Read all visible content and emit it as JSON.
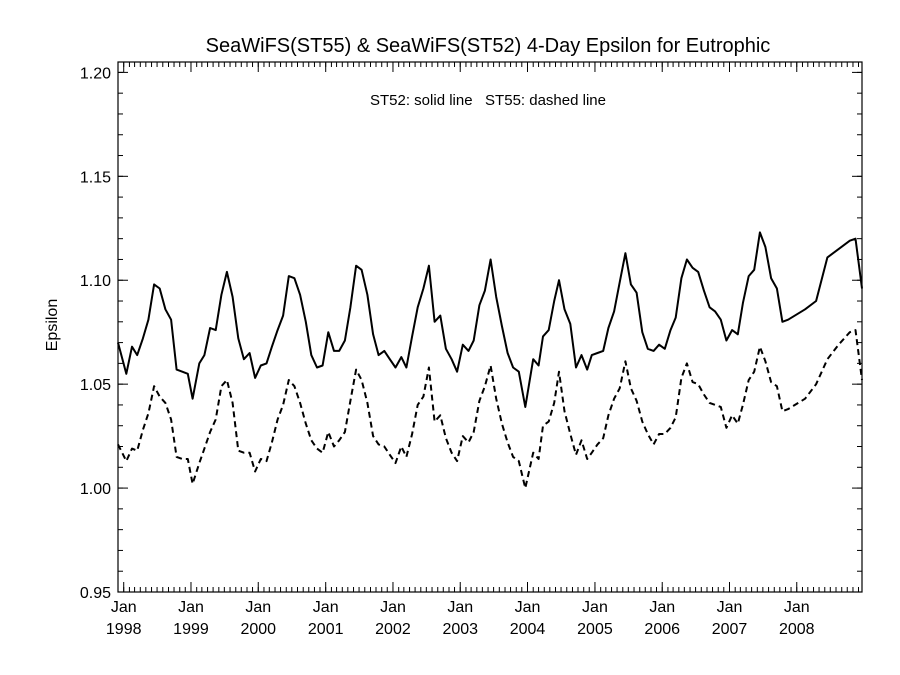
{
  "chart_data": {
    "type": "line",
    "title": "SeaWiFS(ST55) & SeaWiFS(ST52) 4-Day Epsilon for Eutrophic",
    "annotation": "ST52: solid line   ST55: dashed line",
    "ylabel": "Epsilon",
    "xlabel": "",
    "ylim": [
      0.95,
      1.205
    ],
    "xlim": [
      "1997-12-01",
      "2008-12-20"
    ],
    "y_ticks": [
      "0.95",
      "1.00",
      "1.05",
      "1.10",
      "1.15",
      "1.20"
    ],
    "x_ticks": [
      {
        "date": "1998-01-01",
        "month": "Jan",
        "year": "1998"
      },
      {
        "date": "1999-01-01",
        "month": "Jan",
        "year": "1999"
      },
      {
        "date": "2000-01-01",
        "month": "Jan",
        "year": "2000"
      },
      {
        "date": "2001-01-01",
        "month": "Jan",
        "year": "2001"
      },
      {
        "date": "2002-01-01",
        "month": "Jan",
        "year": "2002"
      },
      {
        "date": "2003-01-01",
        "month": "Jan",
        "year": "2003"
      },
      {
        "date": "2004-01-01",
        "month": "Jan",
        "year": "2004"
      },
      {
        "date": "2005-01-01",
        "month": "Jan",
        "year": "2005"
      },
      {
        "date": "2006-01-01",
        "month": "Jan",
        "year": "2006"
      },
      {
        "date": "2007-01-01",
        "month": "Jan",
        "year": "2007"
      },
      {
        "date": "2008-01-01",
        "month": "Jan",
        "year": "2008"
      }
    ],
    "series": [
      {
        "name": "ST52",
        "style": "solid",
        "points": [
          [
            "1997-12-01",
            1.07
          ],
          [
            "1998-01-15",
            1.055
          ],
          [
            "1998-02-15",
            1.068
          ],
          [
            "1998-03-15",
            1.064
          ],
          [
            "1998-04-15",
            1.072
          ],
          [
            "1998-05-15",
            1.081
          ],
          [
            "1998-06-15",
            1.098
          ],
          [
            "1998-07-15",
            1.096
          ],
          [
            "1998-08-15",
            1.086
          ],
          [
            "1998-09-15",
            1.081
          ],
          [
            "1998-10-15",
            1.057
          ],
          [
            "1998-11-15",
            1.056
          ],
          [
            "1998-12-15",
            1.055
          ],
          [
            "1999-01-10",
            1.043
          ],
          [
            "1999-02-15",
            1.06
          ],
          [
            "1999-03-15",
            1.064
          ],
          [
            "1999-04-15",
            1.077
          ],
          [
            "1999-05-15",
            1.076
          ],
          [
            "1999-06-15",
            1.093
          ],
          [
            "1999-07-15",
            1.104
          ],
          [
            "1999-08-15",
            1.092
          ],
          [
            "1999-09-15",
            1.072
          ],
          [
            "1999-10-15",
            1.062
          ],
          [
            "1999-11-15",
            1.065
          ],
          [
            "1999-12-15",
            1.053
          ],
          [
            "2000-01-15",
            1.059
          ],
          [
            "2000-02-15",
            1.06
          ],
          [
            "2000-03-15",
            1.068
          ],
          [
            "2000-04-15",
            1.076
          ],
          [
            "2000-05-15",
            1.083
          ],
          [
            "2000-06-15",
            1.102
          ],
          [
            "2000-07-15",
            1.101
          ],
          [
            "2000-08-15",
            1.093
          ],
          [
            "2000-09-15",
            1.08
          ],
          [
            "2000-10-15",
            1.064
          ],
          [
            "2000-11-15",
            1.058
          ],
          [
            "2000-12-15",
            1.059
          ],
          [
            "2001-01-15",
            1.075
          ],
          [
            "2001-02-15",
            1.066
          ],
          [
            "2001-03-15",
            1.066
          ],
          [
            "2001-04-15",
            1.071
          ],
          [
            "2001-05-15",
            1.087
          ],
          [
            "2001-06-15",
            1.107
          ],
          [
            "2001-07-15",
            1.105
          ],
          [
            "2001-08-15",
            1.093
          ],
          [
            "2001-09-15",
            1.074
          ],
          [
            "2001-10-15",
            1.064
          ],
          [
            "2001-11-15",
            1.066
          ],
          [
            "2001-12-15",
            1.062
          ],
          [
            "2002-01-15",
            1.058
          ],
          [
            "2002-02-15",
            1.063
          ],
          [
            "2002-03-15",
            1.058
          ],
          [
            "2002-04-15",
            1.073
          ],
          [
            "2002-05-15",
            1.087
          ],
          [
            "2002-06-15",
            1.096
          ],
          [
            "2002-07-15",
            1.107
          ],
          [
            "2002-08-15",
            1.08
          ],
          [
            "2002-09-15",
            1.083
          ],
          [
            "2002-10-15",
            1.067
          ],
          [
            "2002-11-15",
            1.062
          ],
          [
            "2002-12-15",
            1.056
          ],
          [
            "2003-01-15",
            1.069
          ],
          [
            "2003-02-15",
            1.066
          ],
          [
            "2003-03-15",
            1.071
          ],
          [
            "2003-04-15",
            1.088
          ],
          [
            "2003-05-15",
            1.095
          ],
          [
            "2003-06-15",
            1.11
          ],
          [
            "2003-07-15",
            1.092
          ],
          [
            "2003-08-15",
            1.078
          ],
          [
            "2003-09-15",
            1.065
          ],
          [
            "2003-10-15",
            1.058
          ],
          [
            "2003-11-15",
            1.056
          ],
          [
            "2003-12-20",
            1.039
          ],
          [
            "2004-02-01",
            1.062
          ],
          [
            "2004-03-01",
            1.059
          ],
          [
            "2004-03-25",
            1.073
          ],
          [
            "2004-04-25",
            1.076
          ],
          [
            "2004-05-25",
            1.09
          ],
          [
            "2004-06-20",
            1.1
          ],
          [
            "2004-07-20",
            1.086
          ],
          [
            "2004-08-20",
            1.079
          ],
          [
            "2004-09-20",
            1.058
          ],
          [
            "2004-10-20",
            1.064
          ],
          [
            "2004-11-20",
            1.057
          ],
          [
            "2004-12-15",
            1.064
          ],
          [
            "2005-01-15",
            1.065
          ],
          [
            "2005-02-15",
            1.066
          ],
          [
            "2005-03-15",
            1.077
          ],
          [
            "2005-04-15",
            1.085
          ],
          [
            "2005-05-15",
            1.099
          ],
          [
            "2005-06-15",
            1.113
          ],
          [
            "2005-07-15",
            1.098
          ],
          [
            "2005-08-15",
            1.094
          ],
          [
            "2005-09-15",
            1.075
          ],
          [
            "2005-10-15",
            1.067
          ],
          [
            "2005-11-15",
            1.066
          ],
          [
            "2005-12-15",
            1.069
          ],
          [
            "2006-01-15",
            1.067
          ],
          [
            "2006-02-15",
            1.076
          ],
          [
            "2006-03-15",
            1.082
          ],
          [
            "2006-04-15",
            1.101
          ],
          [
            "2006-05-15",
            1.11
          ],
          [
            "2006-06-15",
            1.106
          ],
          [
            "2006-07-15",
            1.104
          ],
          [
            "2006-08-15",
            1.095
          ],
          [
            "2006-09-15",
            1.087
          ],
          [
            "2006-10-15",
            1.085
          ],
          [
            "2006-11-15",
            1.081
          ],
          [
            "2006-12-15",
            1.071
          ],
          [
            "2007-01-15",
            1.076
          ],
          [
            "2007-02-15",
            1.074
          ],
          [
            "2007-03-15",
            1.089
          ],
          [
            "2007-04-15",
            1.102
          ],
          [
            "2007-05-15",
            1.105
          ],
          [
            "2007-06-15",
            1.123
          ],
          [
            "2007-07-15",
            1.116
          ],
          [
            "2007-08-15",
            1.101
          ],
          [
            "2007-09-15",
            1.096
          ],
          [
            "2007-10-15",
            1.08
          ],
          [
            "2007-11-15",
            1.081
          ],
          [
            "2008-02-15",
            1.086
          ],
          [
            "2008-04-15",
            1.09
          ],
          [
            "2008-06-15",
            1.111
          ],
          [
            "2008-08-15",
            1.115
          ],
          [
            "2008-10-15",
            1.119
          ],
          [
            "2008-11-15",
            1.12
          ],
          [
            "2008-12-20",
            1.096
          ]
        ]
      },
      {
        "name": "ST55",
        "style": "dashed",
        "points": [
          [
            "1997-12-01",
            1.021
          ],
          [
            "1998-01-15",
            1.013
          ],
          [
            "1998-02-15",
            1.019
          ],
          [
            "1998-03-15",
            1.018
          ],
          [
            "1998-04-15",
            1.028
          ],
          [
            "1998-05-15",
            1.036
          ],
          [
            "1998-06-15",
            1.049
          ],
          [
            "1998-07-15",
            1.044
          ],
          [
            "1998-08-15",
            1.041
          ],
          [
            "1998-09-15",
            1.033
          ],
          [
            "1998-10-15",
            1.015
          ],
          [
            "1998-11-15",
            1.014
          ],
          [
            "1998-12-15",
            1.014
          ],
          [
            "1999-01-10",
            1.002
          ],
          [
            "1999-02-15",
            1.012
          ],
          [
            "1999-03-15",
            1.019
          ],
          [
            "1999-04-15",
            1.027
          ],
          [
            "1999-05-15",
            1.033
          ],
          [
            "1999-06-15",
            1.049
          ],
          [
            "1999-07-15",
            1.052
          ],
          [
            "1999-08-15",
            1.041
          ],
          [
            "1999-09-15",
            1.018
          ],
          [
            "1999-10-15",
            1.017
          ],
          [
            "1999-11-15",
            1.017
          ],
          [
            "1999-12-15",
            1.008
          ],
          [
            "2000-01-15",
            1.014
          ],
          [
            "2000-02-15",
            1.013
          ],
          [
            "2000-03-15",
            1.022
          ],
          [
            "2000-04-15",
            1.033
          ],
          [
            "2000-05-15",
            1.04
          ],
          [
            "2000-06-15",
            1.052
          ],
          [
            "2000-07-15",
            1.049
          ],
          [
            "2000-08-15",
            1.041
          ],
          [
            "2000-09-15",
            1.031
          ],
          [
            "2000-10-15",
            1.023
          ],
          [
            "2000-11-15",
            1.019
          ],
          [
            "2000-12-15",
            1.017
          ],
          [
            "2001-01-15",
            1.027
          ],
          [
            "2001-02-15",
            1.02
          ],
          [
            "2001-03-15",
            1.023
          ],
          [
            "2001-04-15",
            1.027
          ],
          [
            "2001-05-15",
            1.042
          ],
          [
            "2001-06-15",
            1.057
          ],
          [
            "2001-07-15",
            1.052
          ],
          [
            "2001-08-15",
            1.041
          ],
          [
            "2001-09-15",
            1.025
          ],
          [
            "2001-10-15",
            1.021
          ],
          [
            "2001-11-15",
            1.02
          ],
          [
            "2001-12-15",
            1.016
          ],
          [
            "2002-01-15",
            1.012
          ],
          [
            "2002-02-15",
            1.02
          ],
          [
            "2002-03-15",
            1.015
          ],
          [
            "2002-04-15",
            1.026
          ],
          [
            "2002-05-15",
            1.04
          ],
          [
            "2002-06-15",
            1.044
          ],
          [
            "2002-07-15",
            1.058
          ],
          [
            "2002-08-15",
            1.032
          ],
          [
            "2002-09-15",
            1.035
          ],
          [
            "2002-10-15",
            1.024
          ],
          [
            "2002-11-15",
            1.017
          ],
          [
            "2002-12-15",
            1.013
          ],
          [
            "2003-01-15",
            1.025
          ],
          [
            "2003-02-15",
            1.022
          ],
          [
            "2003-03-15",
            1.027
          ],
          [
            "2003-04-15",
            1.042
          ],
          [
            "2003-05-15",
            1.049
          ],
          [
            "2003-06-15",
            1.059
          ],
          [
            "2003-07-15",
            1.043
          ],
          [
            "2003-08-15",
            1.031
          ],
          [
            "2003-09-15",
            1.022
          ],
          [
            "2003-10-15",
            1.015
          ],
          [
            "2003-11-15",
            1.013
          ],
          [
            "2003-12-20",
            1.0
          ],
          [
            "2004-02-01",
            1.017
          ],
          [
            "2004-03-01",
            1.014
          ],
          [
            "2004-03-25",
            1.03
          ],
          [
            "2004-04-25",
            1.032
          ],
          [
            "2004-05-25",
            1.041
          ],
          [
            "2004-06-20",
            1.056
          ],
          [
            "2004-07-20",
            1.037
          ],
          [
            "2004-08-20",
            1.026
          ],
          [
            "2004-09-20",
            1.016
          ],
          [
            "2004-10-20",
            1.023
          ],
          [
            "2004-11-20",
            1.014
          ],
          [
            "2004-12-15",
            1.017
          ],
          [
            "2005-01-15",
            1.021
          ],
          [
            "2005-02-15",
            1.024
          ],
          [
            "2005-03-15",
            1.035
          ],
          [
            "2005-04-15",
            1.043
          ],
          [
            "2005-05-15",
            1.048
          ],
          [
            "2005-06-15",
            1.061
          ],
          [
            "2005-07-15",
            1.048
          ],
          [
            "2005-08-15",
            1.042
          ],
          [
            "2005-09-15",
            1.032
          ],
          [
            "2005-10-15",
            1.026
          ],
          [
            "2005-11-15",
            1.021
          ],
          [
            "2005-12-15",
            1.026
          ],
          [
            "2006-01-15",
            1.026
          ],
          [
            "2006-02-15",
            1.029
          ],
          [
            "2006-03-15",
            1.034
          ],
          [
            "2006-04-15",
            1.053
          ],
          [
            "2006-05-15",
            1.06
          ],
          [
            "2006-06-15",
            1.051
          ],
          [
            "2006-07-15",
            1.05
          ],
          [
            "2006-08-15",
            1.045
          ],
          [
            "2006-09-15",
            1.041
          ],
          [
            "2006-10-15",
            1.04
          ],
          [
            "2006-11-15",
            1.039
          ],
          [
            "2006-12-15",
            1.029
          ],
          [
            "2007-01-15",
            1.035
          ],
          [
            "2007-02-15",
            1.031
          ],
          [
            "2007-03-15",
            1.04
          ],
          [
            "2007-04-15",
            1.052
          ],
          [
            "2007-05-15",
            1.056
          ],
          [
            "2007-06-15",
            1.068
          ],
          [
            "2007-07-15",
            1.061
          ],
          [
            "2007-08-15",
            1.051
          ],
          [
            "2007-09-15",
            1.049
          ],
          [
            "2007-10-15",
            1.037
          ],
          [
            "2007-11-15",
            1.038
          ],
          [
            "2008-02-15",
            1.043
          ],
          [
            "2008-04-15",
            1.05
          ],
          [
            "2008-06-15",
            1.062
          ],
          [
            "2008-08-15",
            1.069
          ],
          [
            "2008-10-15",
            1.075
          ],
          [
            "2008-11-15",
            1.076
          ],
          [
            "2008-12-20",
            1.052
          ]
        ]
      }
    ]
  }
}
